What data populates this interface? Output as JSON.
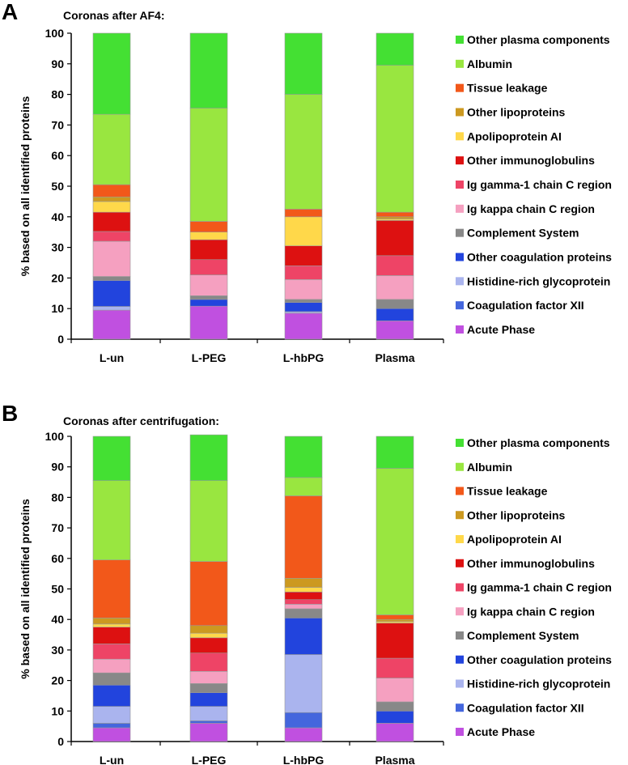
{
  "chart_data": [
    {
      "panel": "A",
      "type": "bar",
      "stacked": true,
      "title": "Coronas after AF4:",
      "xlabel": "",
      "ylabel": "% based on all identified proteins",
      "ylim": [
        0,
        100
      ],
      "yticks": [
        0,
        10,
        20,
        30,
        40,
        50,
        60,
        70,
        80,
        90,
        100
      ],
      "categories": [
        "L-un",
        "L-PEG",
        "L-hbPG",
        "Plasma"
      ],
      "series": [
        {
          "name": "Acute Phase",
          "color": "#c050e0",
          "values": [
            9.5,
            10.8,
            8.5,
            6.0
          ]
        },
        {
          "name": "Coagulation factor XII",
          "color": "#4466dd",
          "values": [
            0.0,
            0.0,
            0.0,
            0.0
          ]
        },
        {
          "name": "Histidine-rich glycoprotein",
          "color": "#aab4ee",
          "values": [
            1.2,
            0.0,
            0.5,
            0.0
          ]
        },
        {
          "name": "Other coagulation proteins",
          "color": "#2244dd",
          "values": [
            8.5,
            2.2,
            3.0,
            4.0
          ]
        },
        {
          "name": "Complement System",
          "color": "#888888",
          "values": [
            1.3,
            1.2,
            1.0,
            3.0
          ]
        },
        {
          "name": "Ig kappa chain C region",
          "color": "#f5a0c0",
          "values": [
            11.5,
            6.8,
            6.5,
            7.8
          ]
        },
        {
          "name": "Ig gamma-1 chain C region",
          "color": "#ee4466",
          "values": [
            3.2,
            5.0,
            4.5,
            6.5
          ]
        },
        {
          "name": "Other immunoglobulins",
          "color": "#dd1111",
          "values": [
            6.3,
            6.5,
            6.5,
            11.5
          ]
        },
        {
          "name": "Apolipoprotein AI",
          "color": "#ffd84a",
          "values": [
            3.5,
            2.5,
            9.5,
            0.5
          ]
        },
        {
          "name": "Other lipoproteins",
          "color": "#cc9920",
          "values": [
            1.5,
            0.0,
            0.0,
            0.7
          ]
        },
        {
          "name": "Tissue leakage",
          "color": "#f2581a",
          "values": [
            4.0,
            3.5,
            2.5,
            1.5
          ]
        },
        {
          "name": "Albumin",
          "color": "#99e640",
          "values": [
            23.0,
            37.0,
            37.5,
            48.0
          ]
        },
        {
          "name": "Other plasma components",
          "color": "#44e033",
          "values": [
            26.5,
            24.5,
            20.0,
            10.5
          ]
        }
      ],
      "legend_position": "right"
    },
    {
      "panel": "B",
      "type": "bar",
      "stacked": true,
      "title": "Coronas after centrifugation:",
      "xlabel": "",
      "ylabel": "% based on all identified proteins",
      "ylim": [
        0,
        100
      ],
      "yticks": [
        0,
        10,
        20,
        30,
        40,
        50,
        60,
        70,
        80,
        90,
        100
      ],
      "categories": [
        "L-un",
        "L-PEG",
        "L-hbPG",
        "Plasma"
      ],
      "series": [
        {
          "name": "Acute Phase",
          "color": "#c050e0",
          "values": [
            4.5,
            6.0,
            4.5,
            6.0
          ]
        },
        {
          "name": "Coagulation factor XII",
          "color": "#4466dd",
          "values": [
            1.5,
            0.8,
            5.0,
            0.0
          ]
        },
        {
          "name": "Histidine-rich glycoprotein",
          "color": "#aab4ee",
          "values": [
            5.5,
            4.7,
            19.0,
            0.0
          ]
        },
        {
          "name": "Other coagulation proteins",
          "color": "#2244dd",
          "values": [
            7.0,
            4.5,
            12.0,
            4.0
          ]
        },
        {
          "name": "Complement System",
          "color": "#888888",
          "values": [
            4.0,
            3.0,
            3.0,
            3.0
          ]
        },
        {
          "name": "Ig kappa chain C region",
          "color": "#f5a0c0",
          "values": [
            4.5,
            4.0,
            1.5,
            7.8
          ]
        },
        {
          "name": "Ig gamma-1 chain C region",
          "color": "#ee4466",
          "values": [
            5.0,
            6.0,
            1.5,
            6.5
          ]
        },
        {
          "name": "Other immunoglobulins",
          "color": "#dd1111",
          "values": [
            5.5,
            5.0,
            2.5,
            11.5
          ]
        },
        {
          "name": "Apolipoprotein AI",
          "color": "#ffd84a",
          "values": [
            1.0,
            1.5,
            1.5,
            0.5
          ]
        },
        {
          "name": "Other lipoproteins",
          "color": "#cc9920",
          "values": [
            2.0,
            2.5,
            3.0,
            0.7
          ]
        },
        {
          "name": "Tissue leakage",
          "color": "#f2581a",
          "values": [
            19.0,
            21.0,
            27.0,
            1.5
          ]
        },
        {
          "name": "Albumin",
          "color": "#99e640",
          "values": [
            26.0,
            26.5,
            6.0,
            48.0
          ]
        },
        {
          "name": "Other plasma components",
          "color": "#44e033",
          "values": [
            14.5,
            15.0,
            13.5,
            10.5
          ]
        }
      ],
      "legend_position": "right"
    }
  ],
  "panels": {
    "a": {
      "letter": "A",
      "subtitle": "Coronas after AF4:"
    },
    "b": {
      "letter": "B",
      "subtitle": "Coronas after centrifugation:"
    }
  }
}
